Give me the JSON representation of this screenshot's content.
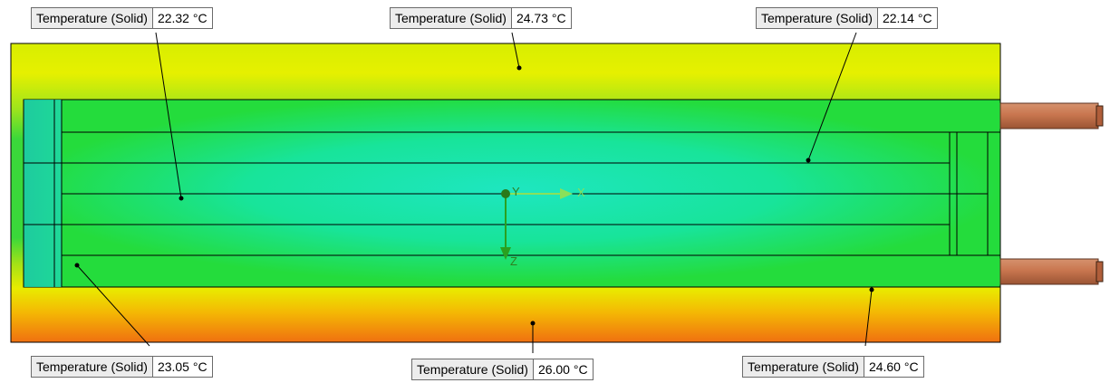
{
  "probes": [
    {
      "id": "p1",
      "name": "Temperature (Solid)",
      "value": "22.32 °C"
    },
    {
      "id": "p2",
      "name": "Temperature (Solid)",
      "value": "24.73 °C"
    },
    {
      "id": "p3",
      "name": "Temperature (Solid)",
      "value": "22.14 °C"
    },
    {
      "id": "p4",
      "name": "Temperature (Solid)",
      "value": "23.05 °C"
    },
    {
      "id": "p5",
      "name": "Temperature (Solid)",
      "value": "26.00 °C"
    },
    {
      "id": "p6",
      "name": "Temperature (Solid)",
      "value": "24.60 °C"
    }
  ],
  "triad": {
    "x_label": "X",
    "y_label": "Y",
    "z_label": "Z"
  },
  "colors": {
    "core": "#16e6b4",
    "mid": "#22e02a",
    "warm": "#e8ef00",
    "hot": "#f07a10",
    "pipe": "#c9764f",
    "outline": "#000000"
  }
}
